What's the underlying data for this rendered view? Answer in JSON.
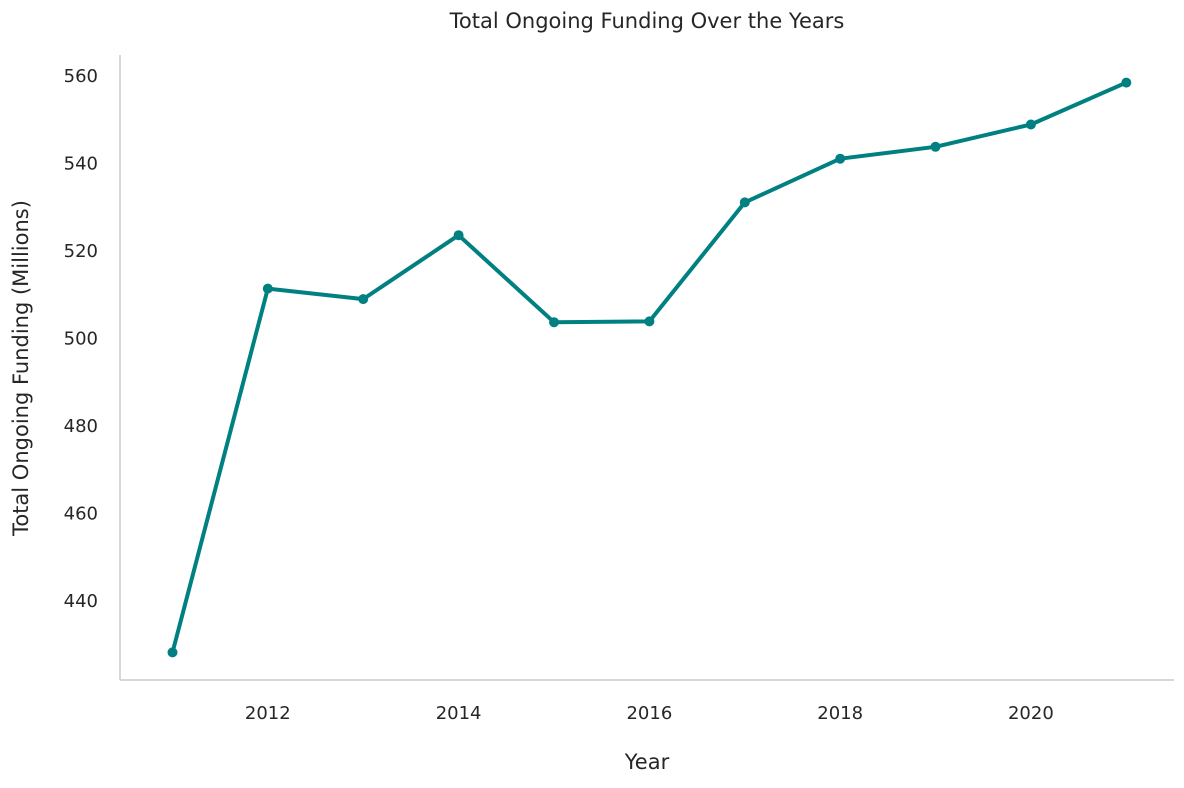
{
  "chart_data": {
    "type": "line",
    "title": "Total Ongoing Funding Over the Years",
    "xlabel": "Year",
    "ylabel": "Total Ongoing Funding (Millions)",
    "x": [
      2011,
      2012,
      2013,
      2014,
      2015,
      2016,
      2017,
      2018,
      2019,
      2020,
      2021
    ],
    "series": [
      {
        "values": [
          428.0,
          511.2,
          508.8,
          523.4,
          503.5,
          503.7,
          530.9,
          540.9,
          543.6,
          548.7,
          558.3
        ]
      }
    ],
    "xticks": [
      2012,
      2014,
      2016,
      2018,
      2020
    ],
    "xtick_labels": [
      "2012",
      "2014",
      "2016",
      "2018",
      "2020"
    ],
    "yticks": [
      440,
      460,
      480,
      500,
      520,
      540,
      560
    ],
    "ytick_labels": [
      "440",
      "460",
      "480",
      "500",
      "520",
      "540",
      "560"
    ],
    "xlim": [
      2010.45,
      2021.5
    ],
    "ylim": [
      421.7,
      564.6
    ],
    "grid": false,
    "legend": "none",
    "colors": {
      "line": "#008080",
      "axis": "#cccccc",
      "text": "#262626"
    }
  }
}
